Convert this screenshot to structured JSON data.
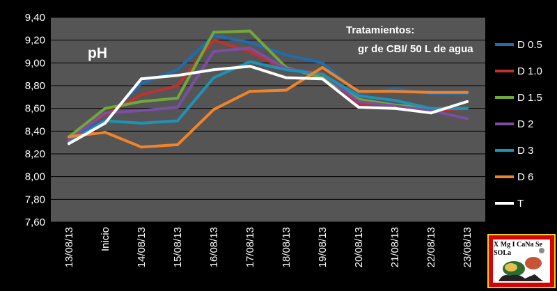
{
  "chart_data": {
    "type": "line",
    "title": "pH",
    "annotation": [
      "Tratamientos:",
      "gr de CBI/ 50 L de agua"
    ],
    "categories": [
      "13/08/13",
      "Inicio",
      "14/08/13",
      "15/08/13",
      "16/08/13",
      "17/08/13",
      "18/08/13",
      "19/08/13",
      "20/08/13",
      "21/08/13",
      "22/08/13",
      "23/08/13"
    ],
    "ylim": [
      7.6,
      9.4
    ],
    "yticks": [
      "7,60",
      "7,80",
      "8,00",
      "8,20",
      "8,40",
      "8,60",
      "8,80",
      "9,00",
      "9,20",
      "9,40"
    ],
    "grid": true,
    "legend_position": "right",
    "series": [
      {
        "name": "D 0.5",
        "color": "#1f6cb0",
        "values": [
          8.33,
          8.5,
          8.82,
          8.94,
          9.24,
          9.18,
          9.07,
          9.0,
          8.73,
          8.77,
          8.73,
          8.73
        ]
      },
      {
        "name": "D 1.0",
        "color": "#c0312f",
        "values": [
          8.34,
          8.54,
          8.72,
          8.8,
          9.2,
          9.1,
          8.94,
          8.91,
          8.64,
          8.63,
          8.58,
          8.6
        ]
      },
      {
        "name": "D 1.5",
        "color": "#72a83a",
        "values": [
          8.35,
          8.6,
          8.66,
          8.69,
          9.27,
          9.28,
          8.96,
          8.87,
          8.68,
          8.63,
          8.6,
          8.6
        ]
      },
      {
        "name": "D 2",
        "color": "#7b4ea3",
        "values": [
          8.32,
          8.56,
          8.58,
          8.61,
          9.1,
          9.13,
          8.95,
          8.9,
          8.66,
          8.62,
          8.58,
          8.51
        ]
      },
      {
        "name": "D 3",
        "color": "#1c93b8",
        "values": [
          8.3,
          8.49,
          8.47,
          8.49,
          8.87,
          9.01,
          8.94,
          8.9,
          8.71,
          8.67,
          8.6,
          8.6
        ]
      },
      {
        "name": "D 6",
        "color": "#f28327",
        "values": [
          8.35,
          8.39,
          8.26,
          8.28,
          8.59,
          8.75,
          8.76,
          8.96,
          8.75,
          8.75,
          8.74,
          8.74
        ]
      },
      {
        "name": "T",
        "color": "#ffffff",
        "values": [
          8.29,
          8.47,
          8.86,
          8.89,
          8.94,
          8.97,
          8.87,
          8.86,
          8.61,
          8.6,
          8.56,
          8.66
        ]
      }
    ]
  },
  "logo": {
    "text": "X Mg I CaNa Se SOLa",
    "colors": {
      "frame": "#d80000",
      "border": "#f2d21b"
    }
  }
}
